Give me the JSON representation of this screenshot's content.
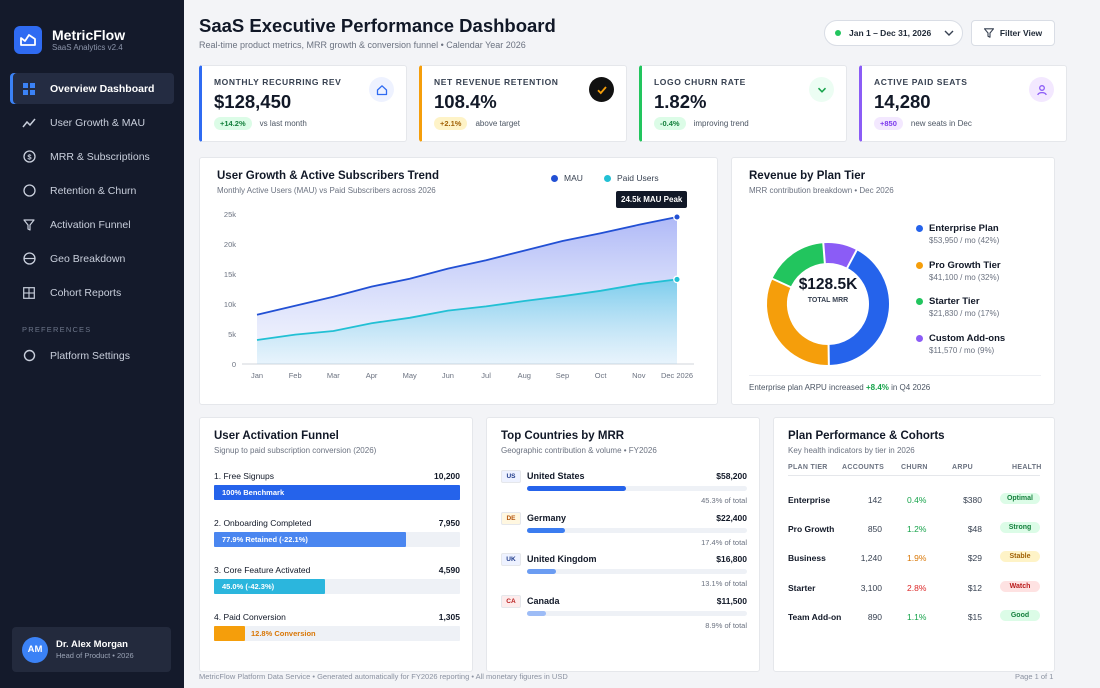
{
  "brand": {
    "name": "MetricFlow",
    "subtitle": "SaaS Analytics v2.4"
  },
  "nav": {
    "items": [
      {
        "label": "Overview Dashboard",
        "icon": "grid-icon",
        "active": true
      },
      {
        "label": "User Growth & MAU",
        "icon": "trend-icon"
      },
      {
        "label": "MRR & Subscriptions",
        "icon": "dollar-icon"
      },
      {
        "label": "Retention & Churn",
        "icon": "circle-icon"
      },
      {
        "label": "Activation Funnel",
        "icon": "funnel-icon"
      },
      {
        "label": "Geo Breakdown",
        "icon": "globe-icon"
      },
      {
        "label": "Cohort Reports",
        "icon": "table-icon"
      }
    ],
    "section_label": "PREFERENCES",
    "settings_label": "Platform Settings"
  },
  "user": {
    "initials": "AM",
    "name": "Dr. Alex Morgan",
    "role": "Head of Product • 2026"
  },
  "header": {
    "title": "SaaS Executive Performance Dashboard",
    "subtitle": "Real-time product metrics, MRR growth & conversion funnel • Calendar Year 2026",
    "date_range": "Jan 1 – Dec 31, 2026",
    "filter_label": "Filter View"
  },
  "kpis": [
    {
      "label": "MONTHLY RECURRING REV",
      "value": "$128,450",
      "badge": "+14.2%",
      "note": "vs last month",
      "accent": "#2f6bf2",
      "icon": "home-icon"
    },
    {
      "label": "NET REVENUE RETENTION",
      "value": "108.4%",
      "badge": "+2.1%",
      "note": "above target",
      "accent": "#f59e0b",
      "icon": "check-icon"
    },
    {
      "label": "LOGO CHURN RATE",
      "value": "1.82%",
      "badge": "-0.4%",
      "note": "improving trend",
      "accent": "#22c55e",
      "icon": "chevron-down-icon"
    },
    {
      "label": "ACTIVE PAID SEATS",
      "value": "14,280",
      "badge": "+850",
      "note": "new seats in Dec",
      "accent": "#8b5cf6",
      "icon": "user-icon"
    }
  ],
  "trend": {
    "title": "User Growth & Active Subscribers Trend",
    "subtitle": "Monthly Active Users (MAU) vs Paid Subscribers across 2026",
    "legend": [
      "MAU",
      "Paid Users"
    ],
    "tooltip": "24.5k MAU Peak"
  },
  "revenue": {
    "title": "Revenue by Plan Tier",
    "subtitle": "MRR contribution breakdown • Dec 2026",
    "center_value": "$128.5K",
    "center_label": "TOTAL MRR",
    "note_prefix": "Enterprise plan ARPU increased",
    "note_value": "+8.4%",
    "note_suffix": "in Q4 2026"
  },
  "funnel": {
    "title": "User Activation Funnel",
    "subtitle": "Signup to paid subscription conversion (2026)",
    "steps": [
      {
        "label": "1. Free Signups",
        "value": "10,200",
        "bar_text": "100% Benchmark",
        "fraction": 1.0,
        "color": "#2563eb"
      },
      {
        "label": "2. Onboarding Completed",
        "value": "7,950",
        "bar_text": "77.9% Retained (-22.1%)",
        "fraction": 0.779,
        "color": "#4a86f0"
      },
      {
        "label": "3. Core Feature Activated",
        "value": "4,590",
        "bar_text": "45.0% (-42.3%)",
        "fraction": 0.45,
        "color": "#2bb6dd"
      },
      {
        "label": "4. Paid Conversion",
        "value": "1,305",
        "bar_text": "12.8% Conversion",
        "fraction": 0.128,
        "color": "#f59e0b"
      }
    ]
  },
  "countries": {
    "title": "Top Countries by MRR",
    "subtitle": "Geographic contribution & volume • FY2026",
    "items": [
      {
        "code": "US",
        "name": "United States",
        "value": "$58,200",
        "pct": "45.3% of total",
        "fraction": 0.453,
        "color": "#2563eb",
        "flag_bg": "#eef2ff",
        "flag_fg": "#1e3a8a"
      },
      {
        "code": "DE",
        "name": "Germany",
        "value": "$22,400",
        "pct": "17.4% of total",
        "fraction": 0.174,
        "color": "#3b7cf0",
        "flag_bg": "#fff7e0",
        "flag_fg": "#b45309"
      },
      {
        "code": "UK",
        "name": "United Kingdom",
        "value": "$16,800",
        "pct": "13.1% of total",
        "fraction": 0.131,
        "color": "#6b9cf2",
        "flag_bg": "#eef2ff",
        "flag_fg": "#1e3a8a"
      },
      {
        "code": "CA",
        "name": "Canada",
        "value": "$11,500",
        "pct": "8.9% of total",
        "fraction": 0.089,
        "color": "#9dbcf6",
        "flag_bg": "#fdecec",
        "flag_fg": "#b91c1c"
      }
    ]
  },
  "plans": {
    "title": "Plan Performance & Cohorts",
    "subtitle": "Key health indicators by tier in 2026",
    "headers": [
      "PLAN TIER",
      "ACCOUNTS",
      "CHURN",
      "ARPU",
      "HEALTH"
    ],
    "rows": [
      {
        "tier": "Enterprise",
        "accounts": "142",
        "churn": "0.4%",
        "churn_color": "#16a34a",
        "arpu": "$380",
        "health": "Optimal",
        "h_bg": "#dcfce7",
        "h_fg": "#15803d"
      },
      {
        "tier": "Pro Growth",
        "accounts": "850",
        "churn": "1.2%",
        "churn_color": "#16a34a",
        "arpu": "$48",
        "health": "Strong",
        "h_bg": "#dcfce7",
        "h_fg": "#15803d"
      },
      {
        "tier": "Business",
        "accounts": "1,240",
        "churn": "1.9%",
        "churn_color": "#d97706",
        "arpu": "$29",
        "health": "Stable",
        "h_bg": "#fef3c7",
        "h_fg": "#a16207"
      },
      {
        "tier": "Starter",
        "accounts": "3,100",
        "churn": "2.8%",
        "churn_color": "#dc2626",
        "arpu": "$12",
        "health": "Watch",
        "h_bg": "#fee2e2",
        "h_fg": "#b91c1c"
      },
      {
        "tier": "Team Add-on",
        "accounts": "890",
        "churn": "1.1%",
        "churn_color": "#16a34a",
        "arpu": "$15",
        "health": "Good",
        "h_bg": "#dcfce7",
        "h_fg": "#15803d"
      }
    ]
  },
  "footer": {
    "left": "MetricFlow Platform Data Service • Generated automatically for FY2026 reporting • All monetary figures in USD",
    "right": "Page 1 of 1"
  },
  "chart_data": [
    {
      "type": "area",
      "x": [
        "Jan",
        "Feb",
        "Mar",
        "Apr",
        "May",
        "Jun",
        "Jul",
        "Aug",
        "Sep",
        "Oct",
        "Nov",
        "Dec 2026"
      ],
      "series": [
        {
          "name": "MAU",
          "values": [
            8200,
            9700,
            11200,
            12900,
            14200,
            15900,
            17300,
            18900,
            20500,
            21800,
            23200,
            24500
          ],
          "color": "#2250d4"
        },
        {
          "name": "Paid Users",
          "values": [
            4000,
            4900,
            5500,
            6800,
            7700,
            8900,
            9600,
            10500,
            11300,
            12200,
            13300,
            14100
          ],
          "color": "#22c0d4"
        }
      ],
      "yticks": [
        "0",
        "5k",
        "10k",
        "15k",
        "20k",
        "25k"
      ],
      "ylim": [
        0,
        25000
      ],
      "annotation": "24.5k MAU Peak",
      "legend": "top-right"
    },
    {
      "type": "pie",
      "categories": [
        "Enterprise Plan",
        "Pro Growth Tier",
        "Starter Tier",
        "Custom Add-ons"
      ],
      "values": [
        53950,
        41100,
        21830,
        11570
      ],
      "labels": [
        "$53,950 / mo (42%)",
        "$41,100 / mo (32%)",
        "$21,830 / mo (17%)",
        "$11,570 / mo (9%)"
      ],
      "colors": [
        "#2563eb",
        "#f59e0b",
        "#22c55e",
        "#8b5cf6"
      ],
      "center_value": "$128.5K",
      "center_label": "TOTAL MRR"
    }
  ]
}
